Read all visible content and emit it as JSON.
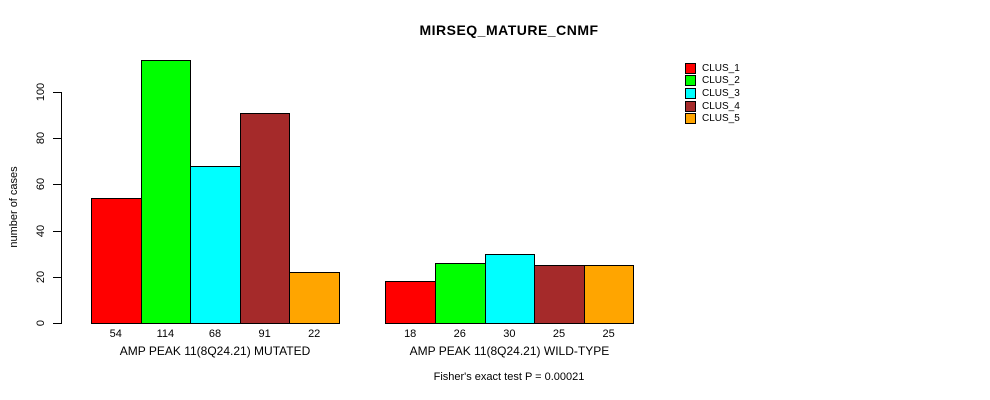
{
  "title": "MIRSEQ_MATURE_CNMF",
  "footnote": "Fisher's exact test P = 0.00021",
  "chart_data": {
    "type": "bar",
    "title": "MIRSEQ_MATURE_CNMF",
    "ylabel": "number of cases",
    "xlabel": "",
    "ylim": [
      0,
      114
    ],
    "yticks": [
      0,
      20,
      40,
      60,
      80,
      100
    ],
    "grid": false,
    "legend_position": "top-right",
    "series": [
      "CLUS_1",
      "CLUS_2",
      "CLUS_3",
      "CLUS_4",
      "CLUS_5"
    ],
    "colors": [
      "#FF0000",
      "#00FF00",
      "#00FFFF",
      "#A52A2A",
      "#FFA500"
    ],
    "groups": [
      {
        "label": "AMP PEAK 11(8Q24.21) MUTATED",
        "values": [
          54,
          114,
          68,
          91,
          22
        ]
      },
      {
        "label": "AMP PEAK 11(8Q24.21) WILD-TYPE",
        "values": [
          18,
          26,
          30,
          25,
          25
        ]
      }
    ],
    "bar_value_labels_shown": true
  }
}
